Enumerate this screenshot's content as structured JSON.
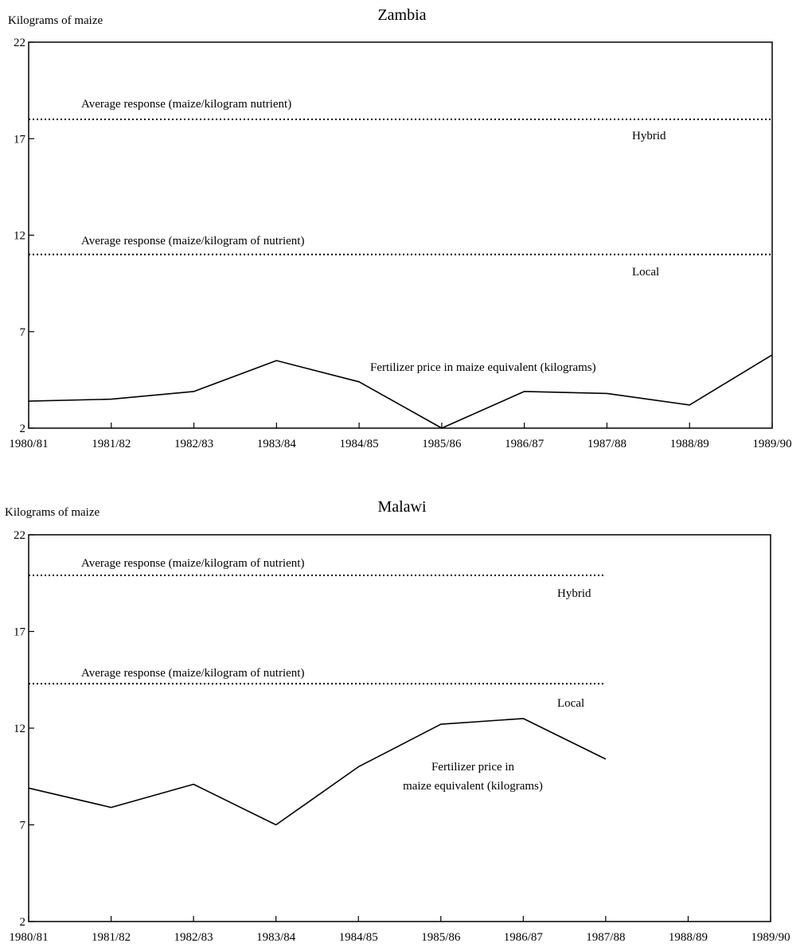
{
  "chart_data": [
    {
      "type": "line",
      "title": "Zambia",
      "ylabel": "Kilograms of maize",
      "xlabel": "",
      "categories": [
        "1980/81",
        "1981/82",
        "1982/83",
        "1983/84",
        "1984/85",
        "1985/86",
        "1986/87",
        "1987/88",
        "1988/89",
        "1989/90"
      ],
      "yticks": [
        2,
        7,
        12,
        17,
        22
      ],
      "ylim": [
        2,
        22
      ],
      "grid": false,
      "series": [
        {
          "name": "Fertilizer price in maize equivalent (kilograms)",
          "style": "solid",
          "values": [
            3.4,
            3.5,
            3.9,
            5.5,
            4.4,
            2.0,
            3.9,
            3.8,
            3.2,
            5.8
          ]
        },
        {
          "name": "Average response (maize/kilogram nutrient)",
          "sublabel": "Hybrid",
          "style": "dotted",
          "values": [
            18.0,
            18.0,
            18.0,
            18.0,
            18.0,
            18.0,
            18.0,
            18.0,
            18.0,
            18.0
          ]
        },
        {
          "name": "Average response (maize/kilogram of nutrient)",
          "sublabel": "Local",
          "style": "dotted",
          "values": [
            11.0,
            11.0,
            11.0,
            11.0,
            11.0,
            11.0,
            11.0,
            11.0,
            11.0,
            11.0
          ]
        }
      ]
    },
    {
      "type": "line",
      "title": "Malawi",
      "ylabel": "Kilograms of maize",
      "xlabel": "",
      "categories": [
        "1980/81",
        "1981/82",
        "1982/83",
        "1983/84",
        "1984/85",
        "1985/86",
        "1986/87",
        "1987/88",
        "1988/89",
        "1989/90"
      ],
      "yticks": [
        2,
        7,
        12,
        17,
        22
      ],
      "ylim": [
        2,
        22
      ],
      "grid": false,
      "series": [
        {
          "name": "Fertilizer price in maize equivalent (kilograms)",
          "label_lines": [
            "Fertilizer price in",
            "maize equivalent (kilograms)"
          ],
          "style": "solid",
          "values": [
            8.9,
            7.9,
            9.1,
            7.0,
            10.0,
            12.2,
            12.5,
            10.4,
            null,
            null
          ]
        },
        {
          "name": "Average response (maize/kilogram of nutrient)",
          "sublabel": "Hybrid",
          "style": "dotted",
          "values": [
            19.9,
            19.9,
            19.9,
            19.9,
            19.9,
            19.9,
            19.9,
            19.9,
            null,
            null
          ]
        },
        {
          "name": "Average response (maize/kilogram of nutrient)",
          "sublabel": "Local",
          "style": "dotted",
          "values": [
            14.3,
            14.3,
            14.3,
            14.3,
            14.3,
            14.3,
            14.3,
            14.3,
            null,
            null
          ]
        }
      ]
    }
  ]
}
